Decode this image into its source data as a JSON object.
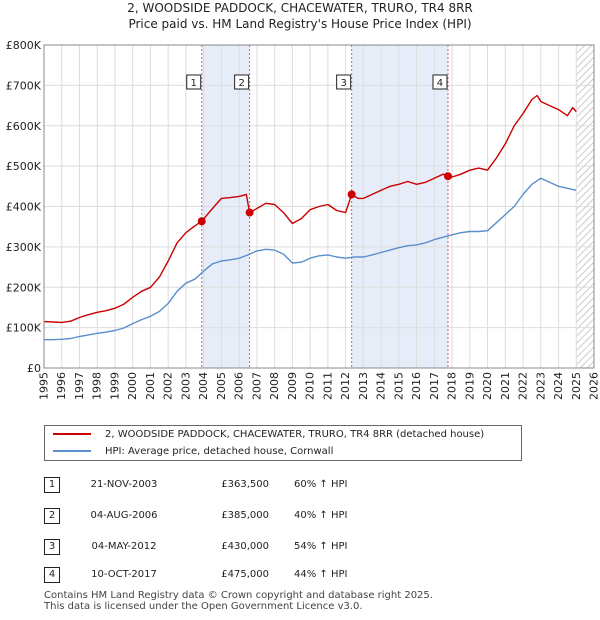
{
  "title_line1": "2, WOODSIDE PADDOCK, CHACEWATER, TRURO, TR4 8RR",
  "title_line2": "Price paid vs. HM Land Registry's House Price Index (HPI)",
  "chart_data": {
    "type": "line",
    "title": "2, WOODSIDE PADDOCK, CHACEWATER, TRURO, TR4 8RR — Price paid vs. HM Land Registry's House Price Index (HPI)",
    "xlim": [
      1995,
      2026
    ],
    "ylim": [
      0,
      800000
    ],
    "x_ticks": [
      1995,
      1996,
      1997,
      1998,
      1999,
      2000,
      2001,
      2002,
      2003,
      2004,
      2005,
      2006,
      2007,
      2008,
      2009,
      2010,
      2011,
      2012,
      2013,
      2014,
      2015,
      2016,
      2017,
      2018,
      2019,
      2020,
      2021,
      2022,
      2023,
      2024,
      2025,
      2026
    ],
    "y_ticks": [
      0,
      100000,
      200000,
      300000,
      400000,
      500000,
      600000,
      700000,
      800000
    ],
    "y_tick_labels": [
      "£0",
      "£100K",
      "£200K",
      "£300K",
      "£400K",
      "£500K",
      "£600K",
      "£700K",
      "£800K"
    ],
    "grid": true,
    "hatched_from": 2025.0,
    "colors": {
      "property": "#cc0000",
      "hpi": "#5b8ecc",
      "shade": "#e6edf8",
      "vline": "#d06060",
      "grid": "#dddddd"
    },
    "series": [
      {
        "name": "2, WOODSIDE PADDOCK, CHACEWATER, TRURO, TR4 8RR (detached house)",
        "x": [
          1995.0,
          1995.5,
          1996.0,
          1996.5,
          1997.0,
          1997.5,
          1998.0,
          1998.5,
          1999.0,
          1999.5,
          2000.0,
          2000.5,
          2001.0,
          2001.5,
          2002.0,
          2002.5,
          2003.0,
          2003.5,
          2003.89,
          2004.5,
          2005.0,
          2005.5,
          2006.0,
          2006.4,
          2006.59,
          2007.0,
          2007.5,
          2008.0,
          2008.5,
          2009.0,
          2009.5,
          2010.0,
          2010.5,
          2011.0,
          2011.5,
          2012.0,
          2012.34,
          2012.7,
          2013.0,
          2013.5,
          2014.0,
          2014.5,
          2015.0,
          2015.5,
          2016.0,
          2016.5,
          2017.0,
          2017.5,
          2017.77,
          2018.0,
          2018.5,
          2019.0,
          2019.5,
          2020.0,
          2020.5,
          2021.0,
          2021.5,
          2022.0,
          2022.5,
          2022.8,
          2023.0,
          2023.5,
          2024.0,
          2024.5,
          2024.8,
          2025.0
        ],
        "values": [
          115000,
          114000,
          113000,
          116000,
          125000,
          132000,
          138000,
          142000,
          148000,
          158000,
          175000,
          190000,
          200000,
          225000,
          265000,
          310000,
          335000,
          352000,
          363500,
          395000,
          420000,
          422000,
          425000,
          430000,
          385000,
          395000,
          408000,
          405000,
          385000,
          358000,
          370000,
          392000,
          400000,
          405000,
          390000,
          385000,
          430000,
          420000,
          420000,
          430000,
          440000,
          450000,
          455000,
          462000,
          455000,
          460000,
          470000,
          480000,
          475000,
          473000,
          480000,
          490000,
          495000,
          490000,
          520000,
          555000,
          600000,
          630000,
          665000,
          675000,
          660000,
          650000,
          640000,
          625000,
          645000,
          635000
        ]
      },
      {
        "name": "HPI: Average price, detached house, Cornwall",
        "x": [
          1995.0,
          1995.5,
          1996.0,
          1996.5,
          1997.0,
          1997.5,
          1998.0,
          1998.5,
          1999.0,
          1999.5,
          2000.0,
          2000.5,
          2001.0,
          2001.5,
          2002.0,
          2002.5,
          2003.0,
          2003.5,
          2004.0,
          2004.5,
          2005.0,
          2005.5,
          2006.0,
          2006.5,
          2007.0,
          2007.5,
          2008.0,
          2008.5,
          2009.0,
          2009.5,
          2010.0,
          2010.5,
          2011.0,
          2011.5,
          2012.0,
          2012.5,
          2013.0,
          2013.5,
          2014.0,
          2014.5,
          2015.0,
          2015.5,
          2016.0,
          2016.5,
          2017.0,
          2017.5,
          2018.0,
          2018.5,
          2019.0,
          2019.5,
          2020.0,
          2020.5,
          2021.0,
          2021.5,
          2022.0,
          2022.5,
          2023.0,
          2023.5,
          2024.0,
          2024.5,
          2025.0
        ],
        "values": [
          70000,
          70000,
          71000,
          73000,
          78000,
          82000,
          86000,
          89000,
          93000,
          99000,
          110000,
          120000,
          128000,
          140000,
          160000,
          190000,
          210000,
          220000,
          240000,
          258000,
          265000,
          268000,
          272000,
          280000,
          290000,
          294000,
          292000,
          282000,
          260000,
          262000,
          272000,
          278000,
          280000,
          275000,
          272000,
          275000,
          275000,
          280000,
          286000,
          292000,
          298000,
          303000,
          305000,
          310000,
          318000,
          324000,
          330000,
          335000,
          338000,
          338000,
          340000,
          360000,
          380000,
          400000,
          430000,
          455000,
          470000,
          460000,
          450000,
          445000,
          440000
        ]
      }
    ],
    "transactions": [
      {
        "num": "1",
        "x": 2003.89,
        "y": 363500,
        "date": "21-NOV-2003",
        "price": "£363,500",
        "hpi": "60% ↑ HPI"
      },
      {
        "num": "2",
        "x": 2006.59,
        "y": 385000,
        "date": "04-AUG-2006",
        "price": "£385,000",
        "hpi": "40% ↑ HPI"
      },
      {
        "num": "3",
        "x": 2012.34,
        "y": 430000,
        "date": "04-MAY-2012",
        "price": "£430,000",
        "hpi": "54% ↑ HPI"
      },
      {
        "num": "4",
        "x": 2017.77,
        "y": 475000,
        "date": "10-OCT-2017",
        "price": "£475,000",
        "hpi": "44% ↑ HPI"
      }
    ],
    "shaded_periods": [
      [
        2003.89,
        2006.59
      ],
      [
        2012.34,
        2017.77
      ]
    ]
  },
  "legend": {
    "property_label": "2, WOODSIDE PADDOCK, CHACEWATER, TRURO, TR4 8RR (detached house)",
    "hpi_label": "HPI: Average price, detached house, Cornwall"
  },
  "footer": {
    "line1": "Contains HM Land Registry data © Crown copyright and database right 2025.",
    "line2": "This data is licensed under the Open Government Licence v3.0."
  }
}
